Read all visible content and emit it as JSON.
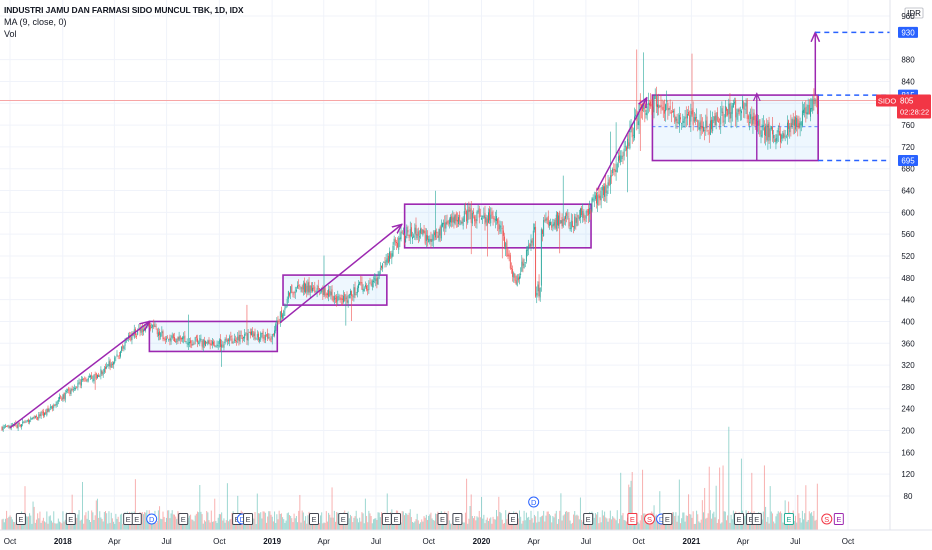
{
  "legend": {
    "title": "INDUSTRI JAMU DAN FARMASI SIDO MUNCUL TBK, 1D, IDX",
    "ma": "MA (9, close, 0)",
    "vol": "Vol"
  },
  "price_axis": {
    "currency": "IDR",
    "ticks": [
      960,
      880,
      840,
      800,
      760,
      720,
      680,
      640,
      600,
      560,
      520,
      480,
      440,
      400,
      360,
      320,
      280,
      240,
      200,
      160,
      120,
      80
    ]
  },
  "price_badges": [
    {
      "label": "930",
      "value": 930,
      "color": "#2962ff"
    },
    {
      "label": "815",
      "value": 815,
      "color": "#2962ff"
    },
    {
      "label": "695",
      "value": 695,
      "color": "#2962ff"
    }
  ],
  "symbol_badge": {
    "symbol": "SIDO",
    "price": "805",
    "countdown": "02:28:22",
    "value": 805,
    "color": "#f23645"
  },
  "time_axis": {
    "labels": [
      "Oct",
      "2018",
      "Apr",
      "Jul",
      "Oct",
      "2019",
      "Apr",
      "Jul",
      "Oct",
      "2020",
      "Apr",
      "Jul",
      "Oct",
      "2021",
      "Apr",
      "Jul",
      "Oct"
    ]
  },
  "event_markers": [
    {
      "label": "E",
      "color": "#434651"
    },
    {
      "label": "E",
      "color": "#434651"
    },
    {
      "label": "E",
      "color": "#434651"
    },
    {
      "label": "E",
      "color": "#434651"
    },
    {
      "label": "D",
      "color": "#2962ff"
    },
    {
      "label": "E",
      "color": "#434651"
    },
    {
      "label": "E",
      "color": "#434651"
    },
    {
      "label": "D",
      "color": "#2962ff"
    },
    {
      "label": "E",
      "color": "#434651"
    },
    {
      "label": "E",
      "color": "#434651"
    },
    {
      "label": "E",
      "color": "#434651"
    },
    {
      "label": "E",
      "color": "#434651"
    },
    {
      "label": "E",
      "color": "#434651"
    },
    {
      "label": "E",
      "color": "#434651"
    },
    {
      "label": "E",
      "color": "#434651"
    },
    {
      "label": "E",
      "color": "#434651"
    },
    {
      "label": "D",
      "color": "#2962ff"
    },
    {
      "label": "E",
      "color": "#434651"
    },
    {
      "label": "E",
      "color": "#f23645"
    },
    {
      "label": "S",
      "color": "#f23645"
    },
    {
      "label": "D",
      "color": "#2962ff"
    },
    {
      "label": "E",
      "color": "#434651"
    },
    {
      "label": "E",
      "color": "#434651"
    },
    {
      "label": "E",
      "color": "#434651"
    },
    {
      "label": "E",
      "color": "#434651"
    },
    {
      "label": "E",
      "color": "#22ab94"
    },
    {
      "label": "S",
      "color": "#f23645"
    },
    {
      "label": "E",
      "color": "#9c27b0"
    }
  ],
  "colors": {
    "up": "#26a69a",
    "down": "#ef5350",
    "drawing": "#9c27b0",
    "dashed": "#2962ff",
    "range_fill": "#e8f0fe"
  },
  "chart_data": {
    "type": "candlestick",
    "symbol": "SIDO",
    "exchange": "IDX",
    "interval": "1D",
    "ylim": [
      60,
      980
    ],
    "y_ticks": [
      80,
      120,
      160,
      200,
      240,
      280,
      320,
      360,
      400,
      440,
      480,
      520,
      560,
      600,
      640,
      680,
      720,
      760,
      800,
      840,
      880,
      960
    ],
    "price_path": [
      {
        "date": "2017-10-01",
        "close": 205
      },
      {
        "date": "2017-11-01",
        "close": 215
      },
      {
        "date": "2017-12-01",
        "close": 232
      },
      {
        "date": "2018-01-01",
        "close": 262
      },
      {
        "date": "2018-02-01",
        "close": 290
      },
      {
        "date": "2018-03-01",
        "close": 300
      },
      {
        "date": "2018-04-01",
        "close": 330
      },
      {
        "date": "2018-05-01",
        "close": 375
      },
      {
        "date": "2018-06-01",
        "close": 395
      },
      {
        "date": "2018-07-01",
        "close": 370
      },
      {
        "date": "2018-08-01",
        "close": 365
      },
      {
        "date": "2018-09-01",
        "close": 362
      },
      {
        "date": "2018-10-01",
        "close": 360
      },
      {
        "date": "2018-11-01",
        "close": 368
      },
      {
        "date": "2018-12-01",
        "close": 375
      },
      {
        "date": "2019-01-01",
        "close": 372
      },
      {
        "date": "2019-02-01",
        "close": 455
      },
      {
        "date": "2019-03-01",
        "close": 462
      },
      {
        "date": "2019-04-01",
        "close": 458
      },
      {
        "date": "2019-05-01",
        "close": 435
      },
      {
        "date": "2019-06-01",
        "close": 462
      },
      {
        "date": "2019-07-01",
        "close": 470
      },
      {
        "date": "2019-08-01",
        "close": 540
      },
      {
        "date": "2019-09-01",
        "close": 568
      },
      {
        "date": "2019-10-01",
        "close": 552
      },
      {
        "date": "2019-11-01",
        "close": 575
      },
      {
        "date": "2019-12-01",
        "close": 595
      },
      {
        "date": "2020-01-01",
        "close": 592
      },
      {
        "date": "2020-02-01",
        "close": 580
      },
      {
        "date": "2020-03-01",
        "close": 470
      },
      {
        "date": "2020-04-01",
        "close": 560
      },
      {
        "date": "2020-05-01",
        "close": 585
      },
      {
        "date": "2020-06-01",
        "close": 580
      },
      {
        "date": "2020-07-01",
        "close": 600
      },
      {
        "date": "2020-08-01",
        "close": 640
      },
      {
        "date": "2020-09-01",
        "close": 700
      },
      {
        "date": "2020-10-01",
        "close": 785
      },
      {
        "date": "2020-11-01",
        "close": 805
      },
      {
        "date": "2020-12-01",
        "close": 780
      },
      {
        "date": "2021-01-01",
        "close": 770
      },
      {
        "date": "2021-02-01",
        "close": 760
      },
      {
        "date": "2021-03-01",
        "close": 780
      },
      {
        "date": "2021-04-01",
        "close": 790
      },
      {
        "date": "2021-05-01",
        "close": 755
      },
      {
        "date": "2021-06-01",
        "close": 740
      },
      {
        "date": "2021-07-01",
        "close": 760
      },
      {
        "date": "2021-08-01",
        "close": 805
      }
    ],
    "consolidation_boxes": [
      {
        "start": "2018-06-01",
        "end": "2019-01-10",
        "low": 345,
        "high": 400
      },
      {
        "start": "2019-01-20",
        "end": "2019-07-20",
        "low": 430,
        "high": 485
      },
      {
        "start": "2019-08-20",
        "end": "2020-07-10",
        "low": 535,
        "high": 615
      },
      {
        "start": "2020-10-25",
        "end": "2021-08-10",
        "low": 695,
        "high": 815
      }
    ],
    "trend_arrows": [
      {
        "from_date": "2017-10-01",
        "from_price": 205,
        "to_date": "2018-06-01",
        "to_price": 400
      },
      {
        "from_date": "2019-01-15",
        "from_price": 398,
        "to_date": "2019-08-15",
        "to_price": 578
      },
      {
        "from_date": "2020-07-20",
        "from_price": 640,
        "to_date": "2020-10-15",
        "to_price": 810
      },
      {
        "from_date": "2021-08-05",
        "from_price": 815,
        "to_date": "2021-08-05",
        "to_price": 930
      }
    ],
    "levels": [
      930,
      815,
      695
    ],
    "last_price": 805
  }
}
